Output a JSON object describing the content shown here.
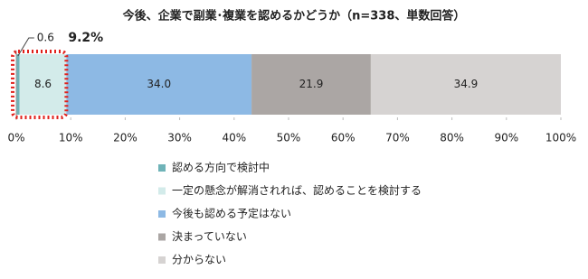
{
  "chart_data": {
    "type": "stacked-bar-horizontal",
    "title": "今後、企業で副業･複業を認めるかどうか（n=338、単数回答）",
    "series": [
      {
        "name": "認める方向で検討中",
        "color": "#6fb3b8",
        "values": [
          0.6
        ]
      },
      {
        "name": "一定の懸念が解消されれば、認めることを検討する",
        "color": "#d3ebea",
        "values": [
          8.6
        ]
      },
      {
        "name": "今後も認める予定はない",
        "color": "#8db9e4",
        "values": [
          34.0
        ],
        "value_labels": [
          "34.0"
        ]
      },
      {
        "name": "決まっていない",
        "color": "#aba6a4",
        "values": [
          21.9
        ]
      },
      {
        "name": "分からない",
        "color": "#d6d3d2",
        "values": [
          34.9
        ]
      }
    ],
    "annotation": {
      "value": 9.2,
      "label": "9.2%",
      "color": "#e0201b"
    },
    "xlim": [
      0,
      100
    ],
    "xticks": [
      {
        "value": 0,
        "label": "0%"
      },
      {
        "value": 10,
        "label": "10%"
      },
      {
        "value": 20,
        "label": "20%"
      },
      {
        "value": 30,
        "label": "30%"
      },
      {
        "value": 40,
        "label": "40%"
      },
      {
        "value": 50,
        "label": "50%"
      },
      {
        "value": 60,
        "label": "60%"
      },
      {
        "value": 70,
        "label": "70%"
      },
      {
        "value": 80,
        "label": "80%"
      },
      {
        "value": 90,
        "label": "90%"
      },
      {
        "value": 100,
        "label": "100%"
      }
    ]
  }
}
